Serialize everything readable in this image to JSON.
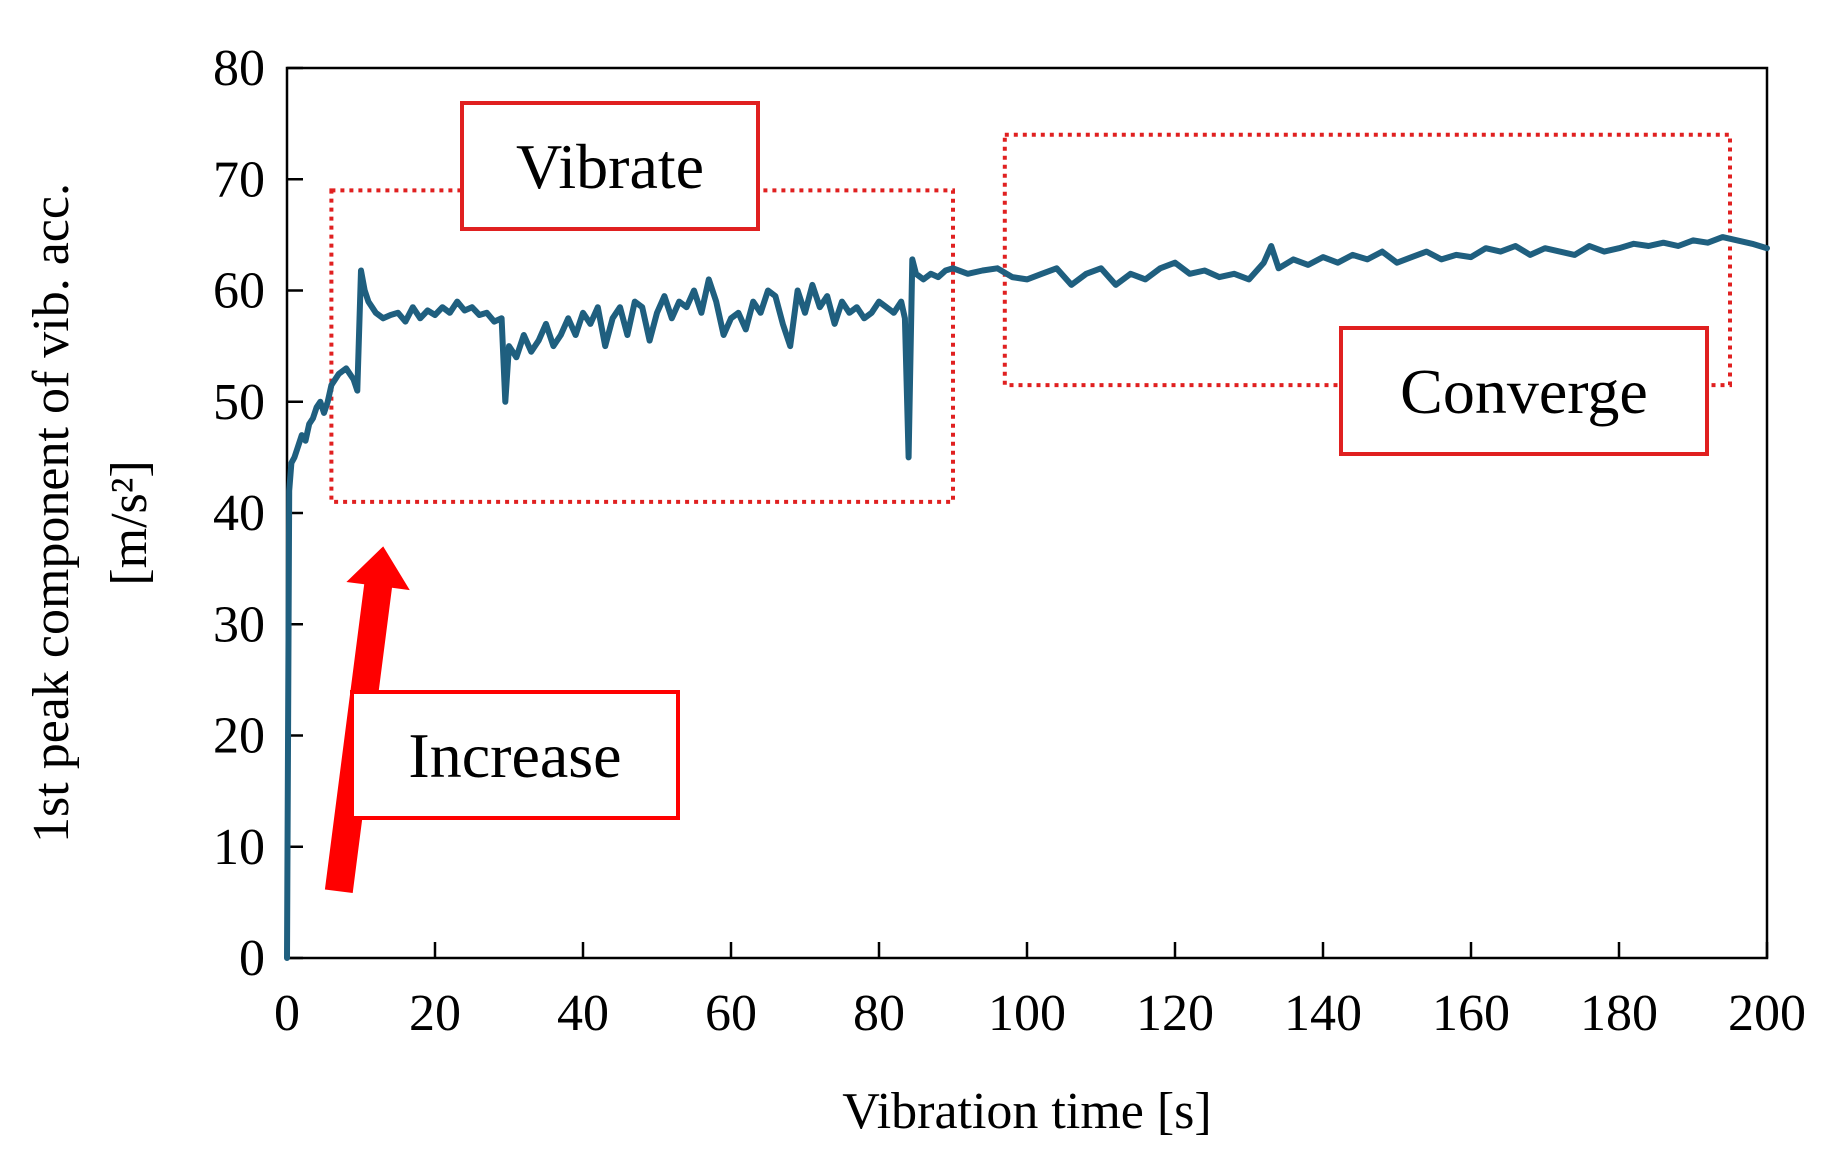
{
  "chart_data": {
    "type": "line",
    "title": "",
    "xlabel": "Vibration time [s]",
    "ylabel_line1": "1st peak component of  vib. acc.",
    "ylabel_line2": "[m/s²]",
    "xlim": [
      0,
      200
    ],
    "ylim": [
      0,
      80
    ],
    "xticks": [
      0,
      20,
      40,
      60,
      80,
      100,
      120,
      140,
      160,
      180,
      200
    ],
    "yticks": [
      0,
      10,
      20,
      30,
      40,
      50,
      60,
      70,
      80
    ],
    "grid": false,
    "line_color": "#1f5f7f",
    "series": [
      {
        "name": "1st peak component",
        "x": [
          0,
          0.3,
          0.6,
          1,
          1.5,
          2,
          2.5,
          3,
          3.5,
          4,
          4.5,
          5,
          5.5,
          6,
          7,
          8,
          9,
          9.5,
          10,
          10.5,
          11,
          11.5,
          12,
          13,
          14,
          15,
          16,
          17,
          18,
          19,
          20,
          21,
          22,
          23,
          24,
          25,
          26,
          27,
          28,
          29,
          29.5,
          30,
          31,
          32,
          33,
          34,
          35,
          36,
          37,
          38,
          39,
          40,
          41,
          42,
          43,
          44,
          45,
          46,
          47,
          48,
          49,
          50,
          51,
          52,
          53,
          54,
          55,
          56,
          57,
          58,
          59,
          60,
          61,
          62,
          63,
          64,
          65,
          66,
          67,
          68,
          69,
          70,
          71,
          72,
          73,
          74,
          75,
          76,
          77,
          78,
          79,
          80,
          81,
          82,
          83,
          83.5,
          84,
          84.5,
          85,
          86,
          87,
          88,
          89,
          90,
          92,
          94,
          96,
          98,
          100,
          102,
          104,
          106,
          108,
          110,
          112,
          114,
          116,
          118,
          120,
          122,
          124,
          126,
          128,
          130,
          132,
          133,
          134,
          136,
          138,
          140,
          142,
          144,
          146,
          148,
          150,
          152,
          154,
          156,
          158,
          160,
          162,
          164,
          166,
          168,
          170,
          172,
          174,
          176,
          178,
          180,
          182,
          184,
          186,
          188,
          190,
          192,
          194,
          196,
          198,
          200
        ],
        "values": [
          0,
          42,
          44.5,
          45,
          46,
          47,
          46.5,
          48,
          48.5,
          49.5,
          50,
          49,
          50,
          51.5,
          52.5,
          53,
          52,
          51,
          61.8,
          60,
          59,
          58.5,
          58,
          57.5,
          57.8,
          58,
          57.2,
          58.5,
          57.5,
          58.2,
          57.8,
          58.5,
          58,
          59,
          58.2,
          58.5,
          57.8,
          58,
          57.2,
          57.5,
          50,
          55,
          54,
          56,
          54.5,
          55.5,
          57,
          55,
          56,
          57.5,
          56,
          58,
          57,
          58.5,
          55,
          57.5,
          58.5,
          56,
          59,
          58.5,
          55.5,
          58,
          59.5,
          57.5,
          59,
          58.5,
          60,
          58,
          61,
          59,
          56,
          57.5,
          58,
          56.5,
          59,
          58,
          60,
          59.5,
          57,
          55,
          60,
          58,
          60.5,
          58.5,
          59.5,
          57,
          59,
          58,
          58.5,
          57.5,
          58,
          59,
          58.5,
          58,
          59,
          57.5,
          45,
          62.8,
          61.5,
          61,
          61.5,
          61.2,
          61.8,
          62,
          61.5,
          61.8,
          62,
          61.2,
          61,
          61.5,
          62,
          60.5,
          61.5,
          62,
          60.5,
          61.5,
          61,
          62,
          62.5,
          61.5,
          61.8,
          61.2,
          61.5,
          61,
          62.5,
          64,
          62,
          62.8,
          62.3,
          63,
          62.5,
          63.2,
          62.8,
          63.5,
          62.5,
          63,
          63.5,
          62.8,
          63.2,
          63,
          63.8,
          63.5,
          64,
          63.2,
          63.8,
          63.5,
          63.2,
          64,
          63.5,
          63.8,
          64.2,
          64,
          64.3,
          64,
          64.5,
          64.3,
          64.8,
          64.5,
          64.2,
          63.8
        ]
      }
    ],
    "annotations": [
      {
        "label": "Vibrate",
        "region_x": [
          6,
          90
        ],
        "region_y": [
          41,
          69
        ],
        "style": "dotted-box",
        "color": "#e02020"
      },
      {
        "label": "Converge",
        "region_x": [
          97,
          195
        ],
        "region_y": [
          51.5,
          74
        ],
        "style": "dotted-box",
        "color": "#e02020"
      },
      {
        "label": "Increase",
        "arrow_from": [
          7,
          6
        ],
        "arrow_to": [
          13,
          37
        ],
        "color": "#ff0000"
      }
    ]
  }
}
